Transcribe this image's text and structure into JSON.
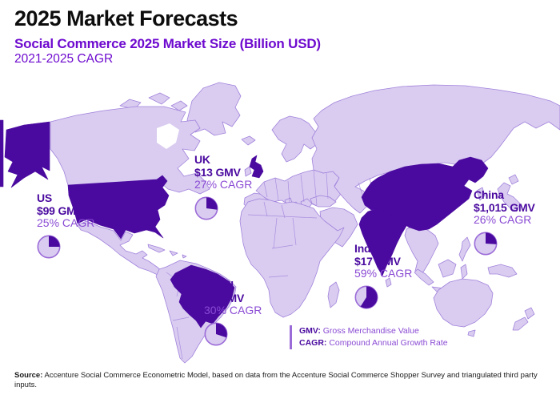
{
  "header": {
    "title": "2025 Market Forecasts",
    "subtitle": "Social Commerce 2025 Market Size (Billion USD)",
    "metric_line": "2021-2025 CAGR"
  },
  "markets": [
    {
      "id": "us",
      "name": "US",
      "gmv": "$99 GMV",
      "cagr": "25% CAGR",
      "cagr_pct": 25
    },
    {
      "id": "uk",
      "name": "UK",
      "gmv": "$13 GMV",
      "cagr": "27% CAGR",
      "cagr_pct": 27
    },
    {
      "id": "brazil",
      "name": "Brazil",
      "gmv": "$5 GMV",
      "cagr": "30% CAGR",
      "cagr_pct": 30
    },
    {
      "id": "india",
      "name": "India",
      "gmv": "$17 GMV",
      "cagr": "59% CAGR",
      "cagr_pct": 59
    },
    {
      "id": "china",
      "name": "China",
      "gmv": "$1,015 GMV",
      "cagr": "26% CAGR",
      "cagr_pct": 26
    }
  ],
  "legend": {
    "items": [
      {
        "term": "GMV:",
        "definition": " Gross Merchandise Value"
      },
      {
        "term": "CAGR:",
        "definition": " Compound Annual Growth Rate"
      }
    ]
  },
  "source": {
    "label": "Source:",
    "text": " Accenture Social Commerce Econometric Model, based on data from the Accenture Social Commerce Shopper Survey and triangulated third party inputs."
  },
  "colors": {
    "highlight": "#4a0a9f",
    "map_light": "#d9ccf0",
    "map_border": "#a283dc",
    "title_text": "#0d0d0d",
    "subtitle_purple": "#6e0acf",
    "label_dark": "#4a0a9f",
    "label_medium": "#8a4bd4",
    "pie_ring": "#9b6bd8",
    "source_text": "#1a1a1a"
  },
  "chart_data": {
    "type": "map",
    "title": "2025 Market Forecasts",
    "subtitle": "Social Commerce 2025 Market Size (Billion USD)",
    "metric": "2021-2025 CAGR",
    "unit": "Billion USD",
    "series": [
      {
        "country": "US",
        "gmv_2025_billion_usd": 99,
        "cagr_2021_2025_pct": 25
      },
      {
        "country": "UK",
        "gmv_2025_billion_usd": 13,
        "cagr_2021_2025_pct": 27
      },
      {
        "country": "Brazil",
        "gmv_2025_billion_usd": 5,
        "cagr_2021_2025_pct": 30
      },
      {
        "country": "India",
        "gmv_2025_billion_usd": 17,
        "cagr_2021_2025_pct": 59
      },
      {
        "country": "China",
        "gmv_2025_billion_usd": 1015,
        "cagr_2021_2025_pct": 26
      }
    ],
    "highlighted_countries": [
      "US",
      "UK",
      "Brazil",
      "India",
      "China"
    ],
    "pie_meaning": "pie wedge fill fraction equals CAGR percent",
    "legend": [
      "GMV: Gross Merchandise Value",
      "CAGR: Compound Annual Growth Rate"
    ]
  }
}
